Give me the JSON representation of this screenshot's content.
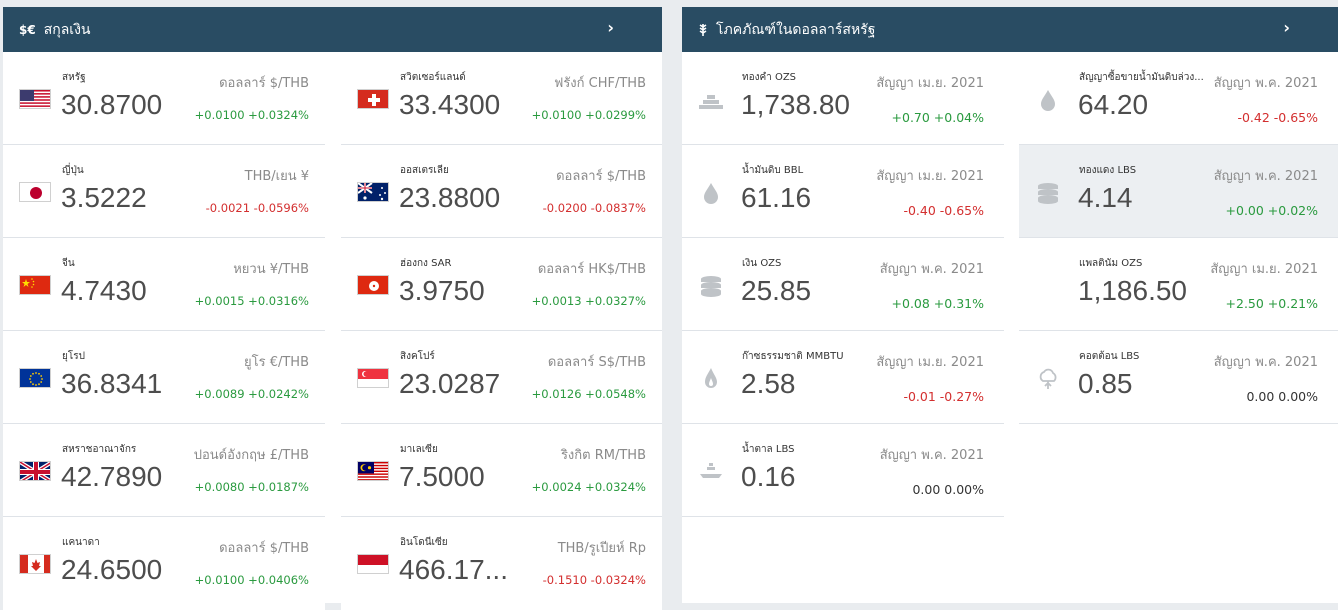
{
  "currency": {
    "title": "สกุลเงิน",
    "icon_label": "$€",
    "icon": "currency-icon",
    "rows": [
      {
        "flag": "us",
        "name": "สหรัฐ",
        "value": "30.8700",
        "unit": "ดอลลาร์ $/THB",
        "change": "+0.0100 +0.0324%",
        "trend": "pos"
      },
      {
        "flag": "ch",
        "name": "สวิตเซอร์แลนด์",
        "value": "33.4300",
        "unit": "ฟรังก์ CHF/THB",
        "change": "+0.0100 +0.0299%",
        "trend": "pos"
      },
      {
        "flag": "jp",
        "name": "ญี่ปุ่น",
        "value": "3.5222",
        "unit": "THB/เยน ¥",
        "change": "-0.0021 -0.0596%",
        "trend": "neg"
      },
      {
        "flag": "au",
        "name": "ออสเตรเลีย",
        "value": "23.8800",
        "unit": "ดอลลาร์ $/THB",
        "change": "-0.0200 -0.0837%",
        "trend": "neg"
      },
      {
        "flag": "cn",
        "name": "จีน",
        "value": "4.7430",
        "unit": "หยวน ¥/THB",
        "change": "+0.0015 +0.0316%",
        "trend": "pos"
      },
      {
        "flag": "hk",
        "name": "ฮ่องกง SAR",
        "value": "3.9750",
        "unit": "ดอลลาร์ HK$/THB",
        "change": "+0.0013 +0.0327%",
        "trend": "pos"
      },
      {
        "flag": "eu",
        "name": "ยุโรป",
        "value": "36.8341",
        "unit": "ยูโร €/THB",
        "change": "+0.0089 +0.0242%",
        "trend": "pos"
      },
      {
        "flag": "sg",
        "name": "สิงคโปร์",
        "value": "23.0287",
        "unit": "ดอลลาร์ S$/THB",
        "change": "+0.0126 +0.0548%",
        "trend": "pos"
      },
      {
        "flag": "gb",
        "name": "สหราชอาณาจักร",
        "value": "42.7890",
        "unit": "ปอนด์อังกฤษ £/THB",
        "change": "+0.0080 +0.0187%",
        "trend": "pos"
      },
      {
        "flag": "my",
        "name": "มาเลเซีย",
        "value": "7.5000",
        "unit": "ริงกิต RM/THB",
        "change": "+0.0024 +0.0324%",
        "trend": "pos"
      },
      {
        "flag": "ca",
        "name": "แคนาดา",
        "value": "24.6500",
        "unit": "ดอลลาร์ $/THB",
        "change": "+0.0100 +0.0406%",
        "trend": "pos"
      },
      {
        "flag": "id",
        "name": "อินโดนีเซีย",
        "value": "466.17...",
        "unit": "THB/รูเปียห์ Rp",
        "change": "-0.1510 -0.0324%",
        "trend": "neg"
      }
    ]
  },
  "commodities": {
    "title": "โภคภัณฑ์ในดอลลาร์สหรัฐ",
    "icon": "wheat-icon",
    "rows": [
      {
        "icon": "gold-bars-icon",
        "name": "ทองคำ OZS",
        "value": "1,738.80",
        "unit": "สัญญา เม.ย. 2021",
        "change": "+0.70 +0.04%",
        "trend": "pos"
      },
      {
        "icon": "oil-drop-icon",
        "name": "สัญญาซื้อขายน้ำมันดิบล่วง...",
        "value": "64.20",
        "unit": "สัญญา พ.ค. 2021",
        "change": "-0.42 -0.65%",
        "trend": "neg"
      },
      {
        "icon": "oil-drop-icon",
        "name": "น้ำมันดิบ BBL",
        "value": "61.16",
        "unit": "สัญญา เม.ย. 2021",
        "change": "-0.40 -0.65%",
        "trend": "neg"
      },
      {
        "icon": "coins-icon",
        "name": "ทองแดง LBS",
        "value": "4.14",
        "unit": "สัญญา พ.ค. 2021",
        "change": "+0.00 +0.02%",
        "trend": "pos"
      },
      {
        "icon": "coins-icon",
        "name": "เงิน OZS",
        "value": "25.85",
        "unit": "สัญญา พ.ค. 2021",
        "change": "+0.08 +0.31%",
        "trend": "pos"
      },
      {
        "icon": "none",
        "name": "แพลตินัม OZS",
        "value": "1,186.50",
        "unit": "สัญญา เม.ย. 2021",
        "change": "+2.50 +0.21%",
        "trend": "pos"
      },
      {
        "icon": "flame-icon",
        "name": "ก๊าซธรรมชาติ MMBTU",
        "value": "2.58",
        "unit": "สัญญา เม.ย. 2021",
        "change": "-0.01 -0.27%",
        "trend": "neg"
      },
      {
        "icon": "cotton-icon",
        "name": "คอตต้อน LBS",
        "value": "0.85",
        "unit": "สัญญา พ.ค. 2021",
        "change": "0.00 0.00%",
        "trend": "neu"
      },
      {
        "icon": "sugar-icon",
        "name": "น้ำตาล LBS",
        "value": "0.16",
        "unit": "สัญญา พ.ค. 2021",
        "change": "0.00 0.00%",
        "trend": "neu"
      }
    ]
  },
  "colors": {
    "header_bg": "#294c63",
    "positive": "#2a9a3f",
    "negative": "#d32f2f",
    "highlight_bg": "#eceff2"
  }
}
